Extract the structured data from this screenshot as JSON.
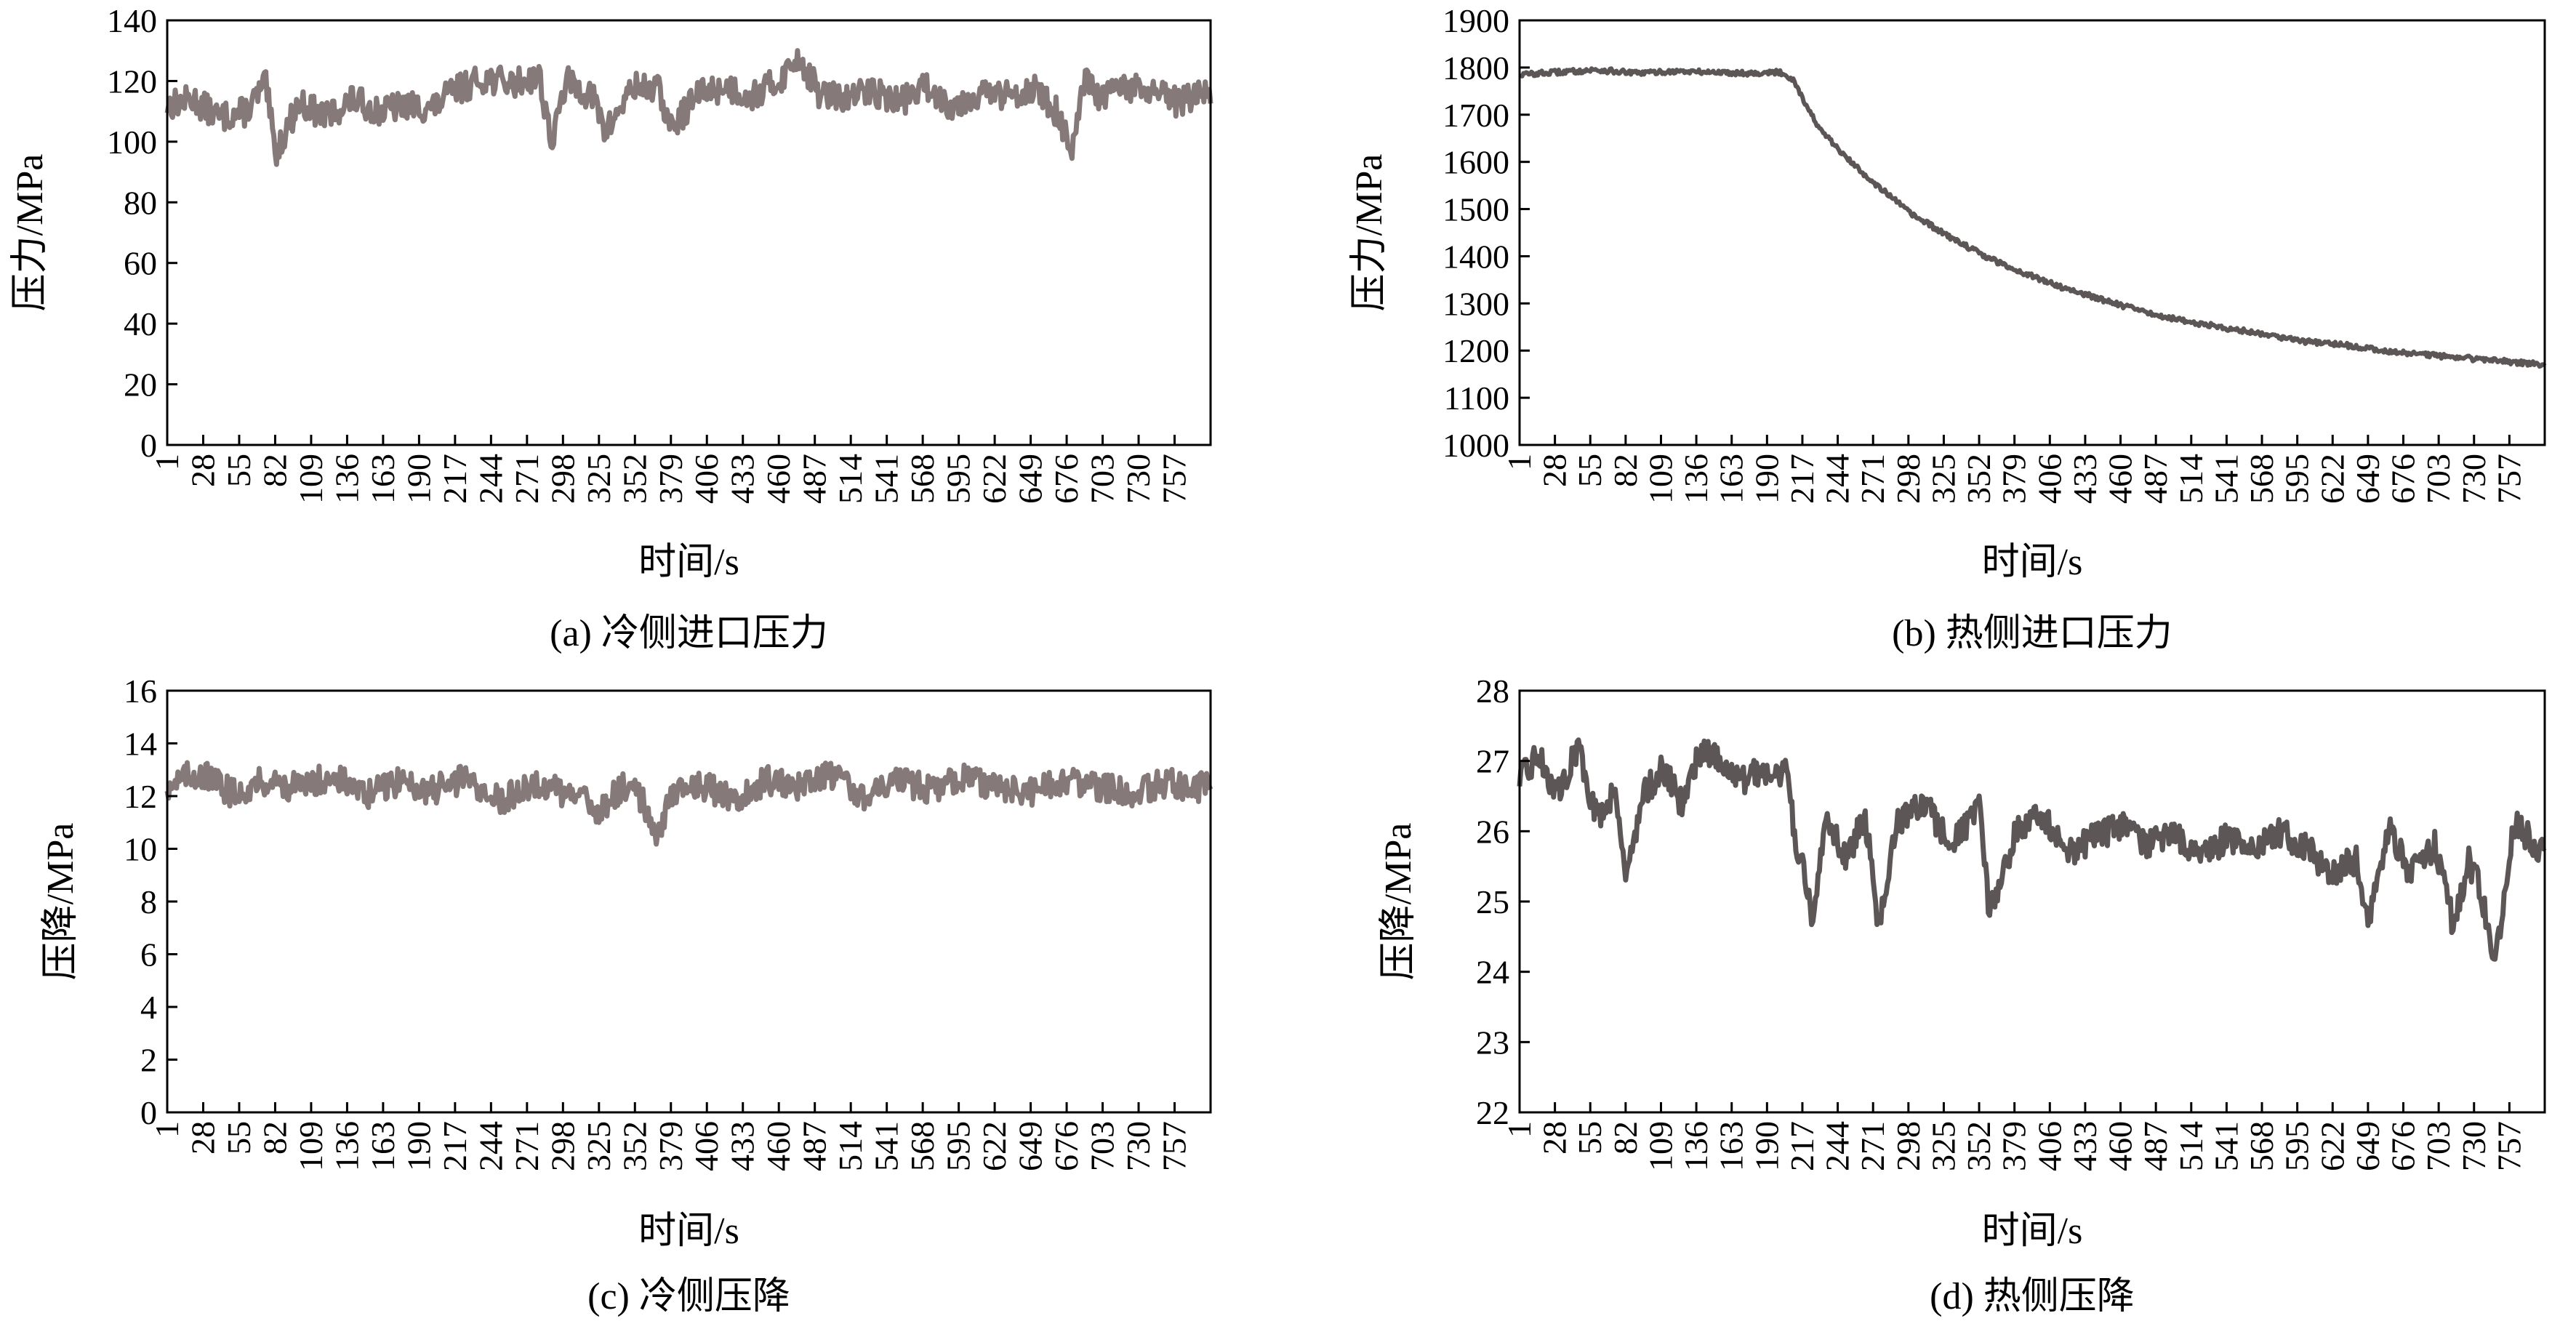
{
  "figure": {
    "panels": [
      {
        "id": "a",
        "caption": "(a) 冷侧进口压力"
      },
      {
        "id": "b",
        "caption": "(b) 热侧进口压力"
      },
      {
        "id": "c",
        "caption": "(c) 冷侧压降"
      },
      {
        "id": "d",
        "caption": "(d) 热侧压降"
      }
    ]
  },
  "chart_data": [
    {
      "panel": "a",
      "type": "line",
      "title": "(a) 冷侧进口压力",
      "xlabel": "时间/s",
      "ylabel": "压力/MPa",
      "ylim": [
        0,
        140
      ],
      "xlim": [
        1,
        784
      ],
      "yticks": [
        0,
        20,
        40,
        60,
        80,
        100,
        120,
        140
      ],
      "xticks": [
        1,
        28,
        55,
        82,
        109,
        136,
        163,
        190,
        217,
        244,
        271,
        298,
        325,
        352,
        379,
        406,
        433,
        460,
        487,
        514,
        541,
        568,
        595,
        622,
        649,
        676,
        703,
        730,
        757
      ],
      "grid": false,
      "color": "#857a79",
      "series": [
        {
          "x": [
            1,
            20,
            40,
            60,
            75,
            82,
            100,
            120,
            140,
            160,
            180,
            200,
            217,
            240,
            260,
            280,
            290,
            300,
            320,
            330,
            350,
            370,
            379,
            400,
            420,
            440,
            460,
            475,
            490,
            510,
            530,
            550,
            570,
            590,
            610,
            630,
            650,
            670,
            680,
            690,
            700,
            720,
            740,
            760,
            784
          ],
          "y": [
            112,
            114,
            108,
            110,
            119,
            96,
            113,
            108,
            114,
            110,
            112,
            111,
            117,
            121,
            119,
            122,
            99,
            120,
            115,
            103,
            118,
            117,
            104,
            116,
            118,
            115,
            120,
            128,
            116,
            114,
            117,
            113,
            118,
            112,
            116,
            115,
            118,
            109,
            95,
            121,
            114,
            118,
            116,
            113,
            117
          ]
        }
      ]
    },
    {
      "panel": "b",
      "type": "line",
      "title": "(b) 热侧进口压力",
      "xlabel": "时间/s",
      "ylabel": "压力/MPa",
      "ylim": [
        1000,
        1900
      ],
      "xlim": [
        1,
        784
      ],
      "yticks": [
        1000,
        1100,
        1200,
        1300,
        1400,
        1500,
        1600,
        1700,
        1800,
        1900
      ],
      "xticks": [
        1,
        28,
        55,
        82,
        109,
        136,
        163,
        190,
        217,
        244,
        271,
        298,
        325,
        352,
        379,
        406,
        433,
        460,
        487,
        514,
        541,
        568,
        595,
        622,
        649,
        676,
        703,
        730,
        757
      ],
      "grid": false,
      "color": "#5d5656",
      "series": [
        {
          "x": [
            1,
            30,
            60,
            90,
            120,
            150,
            180,
            200,
            210,
            220,
            230,
            250,
            270,
            300,
            330,
            360,
            390,
            420,
            450,
            480,
            510,
            540,
            570,
            600,
            630,
            660,
            690,
            720,
            750,
            784
          ],
          "y": [
            1785,
            1790,
            1795,
            1788,
            1792,
            1790,
            1788,
            1790,
            1775,
            1720,
            1670,
            1610,
            1560,
            1490,
            1440,
            1395,
            1360,
            1330,
            1305,
            1280,
            1262,
            1248,
            1235,
            1220,
            1212,
            1200,
            1192,
            1185,
            1178,
            1170
          ]
        }
      ]
    },
    {
      "panel": "c",
      "type": "line",
      "title": "(c) 冷侧压降",
      "xlabel": "时间/s",
      "ylabel": "压降/MPa",
      "ylim": [
        0,
        16
      ],
      "xlim": [
        1,
        784
      ],
      "yticks": [
        0,
        2,
        4,
        6,
        8,
        10,
        12,
        14,
        16
      ],
      "xticks": [
        1,
        28,
        55,
        82,
        109,
        136,
        163,
        190,
        217,
        244,
        271,
        298,
        325,
        352,
        379,
        406,
        433,
        460,
        487,
        514,
        541,
        568,
        595,
        622,
        649,
        676,
        703,
        730,
        757
      ],
      "grid": false,
      "color": "#857a79",
      "series": [
        {
          "x": [
            1,
            25,
            50,
            75,
            100,
            125,
            150,
            175,
            200,
            225,
            250,
            275,
            300,
            325,
            350,
            370,
            379,
            400,
            425,
            450,
            475,
            500,
            525,
            550,
            575,
            600,
            625,
            650,
            675,
            700,
            725,
            750,
            784
          ],
          "y": [
            12.4,
            12.9,
            12.1,
            12.6,
            12.3,
            12.8,
            12.0,
            12.6,
            12.2,
            12.7,
            11.8,
            12.5,
            12.1,
            11.5,
            12.6,
            10.4,
            12.2,
            12.5,
            11.9,
            12.6,
            12.3,
            12.8,
            12.0,
            12.6,
            12.2,
            12.7,
            12.3,
            12.1,
            12.6,
            12.4,
            12.1,
            12.5,
            12.3
          ]
        }
      ]
    },
    {
      "panel": "d",
      "type": "line",
      "title": "(d) 热侧压降",
      "xlabel": "时间/s",
      "ylabel": "压降/MPa",
      "ylim": [
        22,
        28
      ],
      "xlim": [
        1,
        784
      ],
      "yticks": [
        22,
        23,
        24,
        25,
        26,
        27,
        28
      ],
      "xticks": [
        1,
        28,
        55,
        82,
        109,
        136,
        163,
        190,
        217,
        244,
        271,
        298,
        325,
        352,
        379,
        406,
        433,
        460,
        487,
        514,
        541,
        568,
        595,
        622,
        649,
        676,
        703,
        730,
        757
      ],
      "grid": false,
      "color": "#5d5656",
      "series": [
        {
          "x": [
            1,
            15,
            30,
            45,
            60,
            75,
            82,
            95,
            110,
            125,
            140,
            155,
            170,
            190,
            205,
            212,
            220,
            225,
            235,
            250,
            265,
            275,
            290,
            310,
            330,
            352,
            360,
            380,
            400,
            420,
            440,
            460,
            480,
            500,
            520,
            540,
            560,
            580,
            600,
            620,
            640,
            650,
            665,
            680,
            700,
            715,
            725,
            735,
            745,
            760,
            784
          ],
          "y": [
            26.7,
            27.1,
            26.5,
            27.2,
            26.2,
            26.6,
            25.3,
            26.5,
            26.9,
            26.4,
            27.2,
            27.0,
            26.7,
            26.9,
            26.8,
            25.9,
            25.2,
            24.6,
            26.3,
            25.6,
            26.2,
            24.7,
            26.1,
            26.4,
            25.8,
            26.3,
            24.8,
            26.0,
            26.2,
            25.7,
            25.9,
            26.1,
            25.8,
            26.0,
            25.6,
            25.9,
            25.7,
            26.0,
            25.8,
            25.4,
            25.6,
            24.7,
            26.1,
            25.4,
            25.8,
            24.6,
            25.6,
            25.2,
            24.0,
            26.1,
            25.7
          ]
        }
      ]
    }
  ]
}
